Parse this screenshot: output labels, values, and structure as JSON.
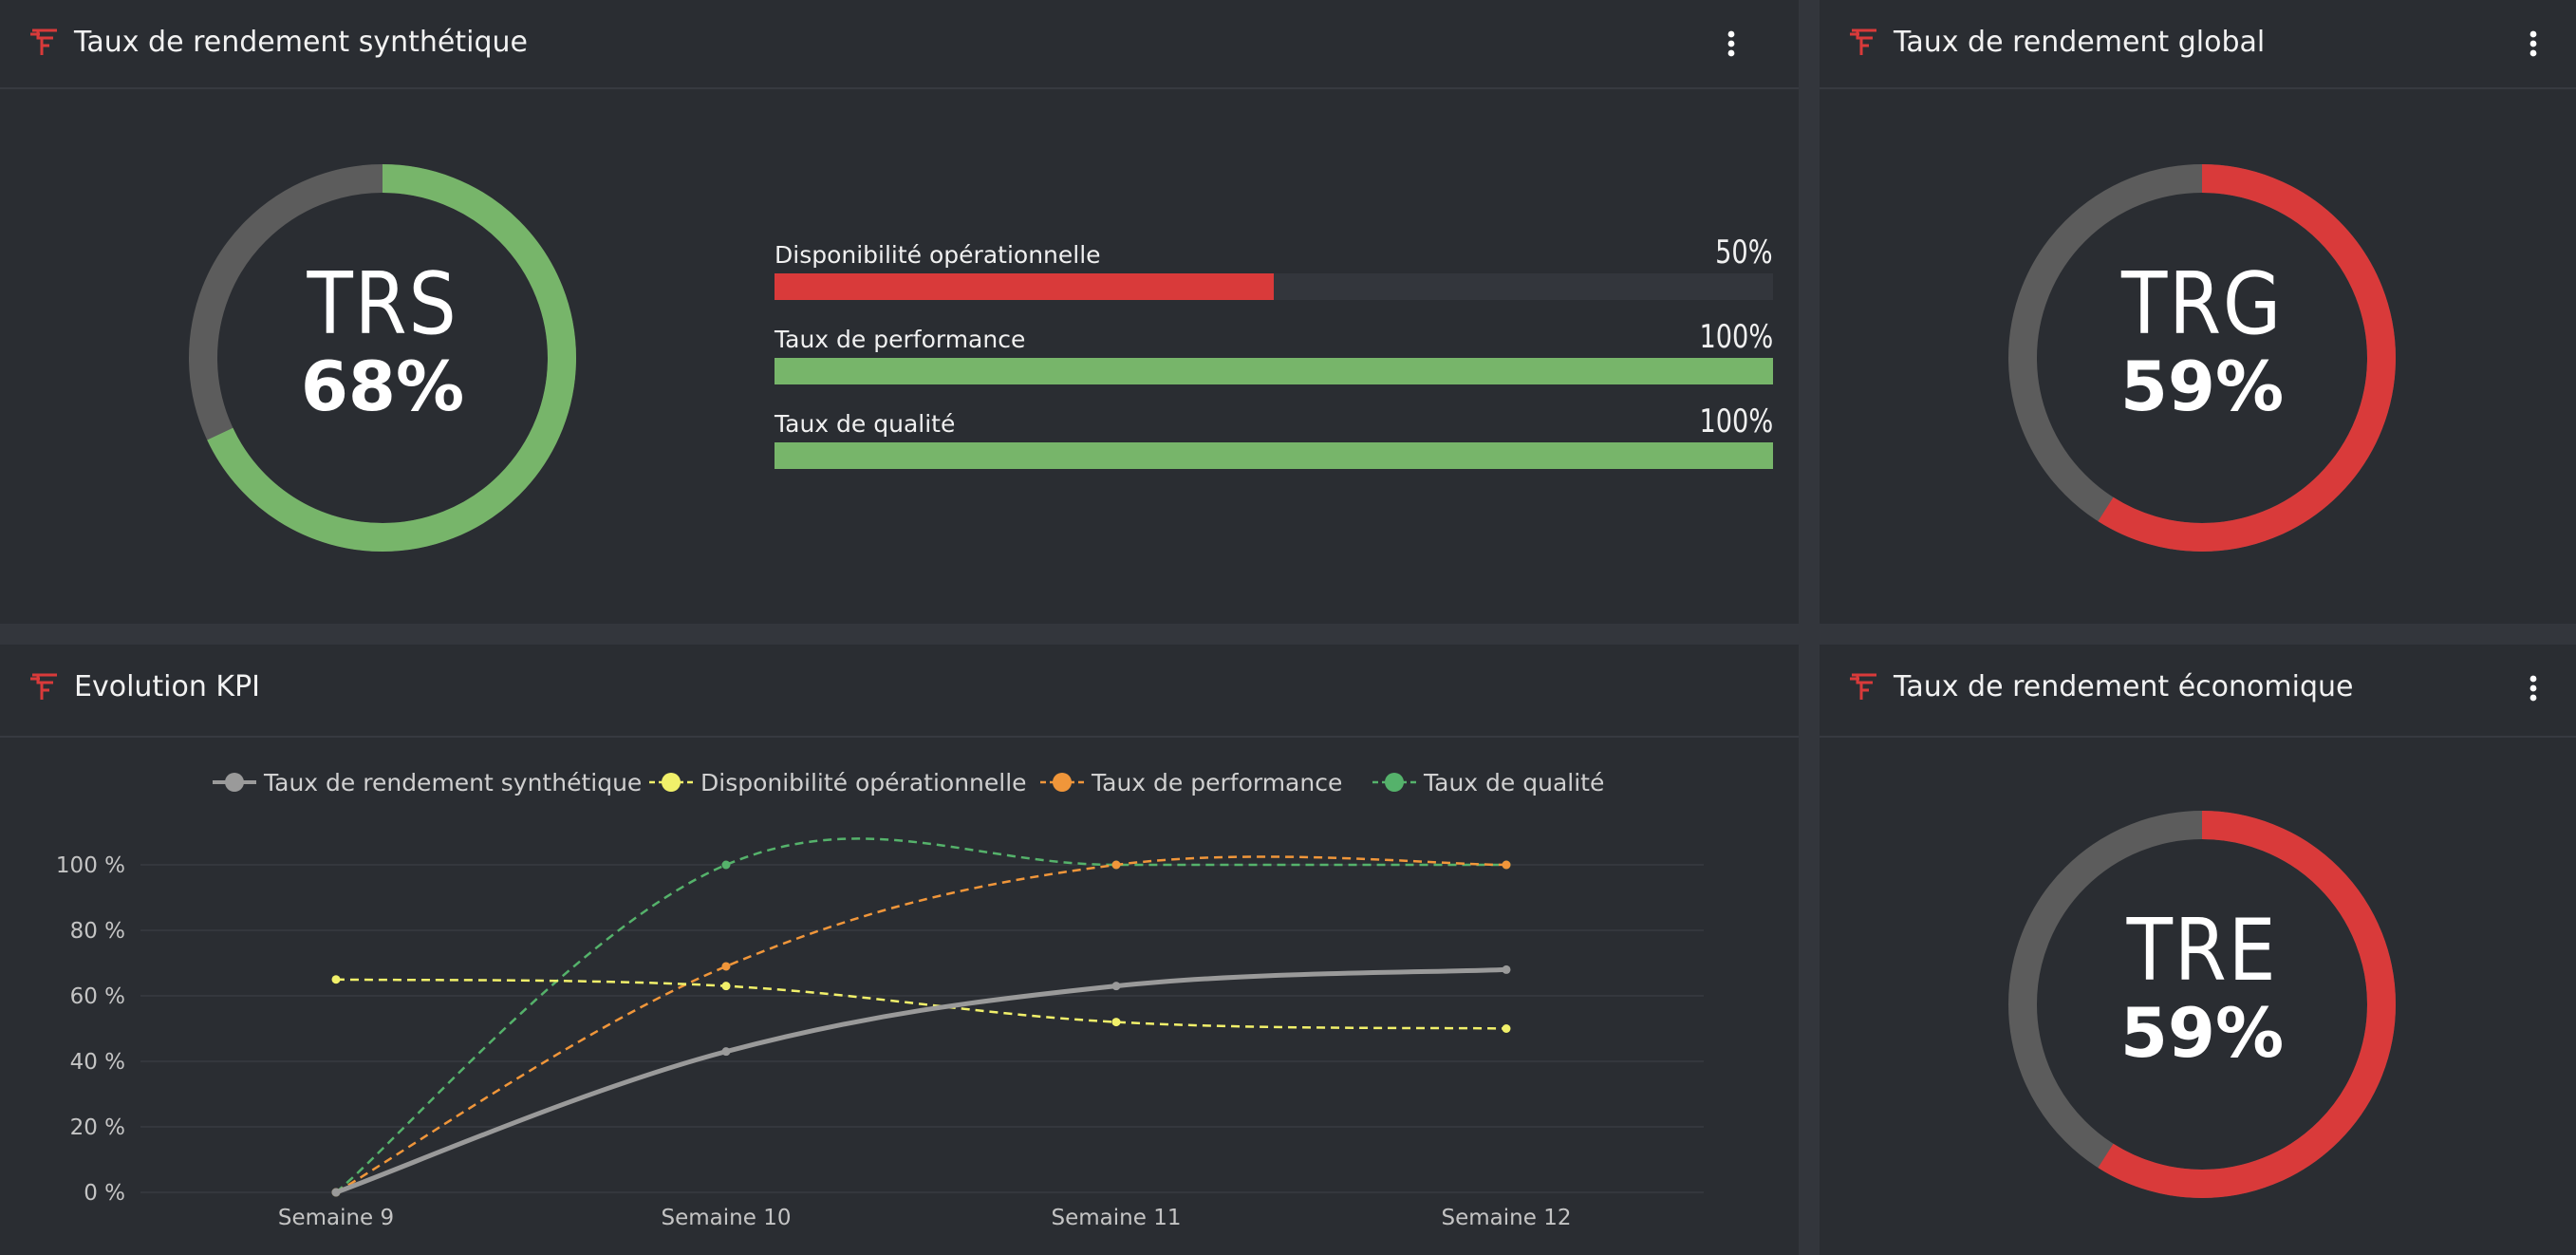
{
  "trs_panel": {
    "title": "Taux de rendement synthétique",
    "gauge": {
      "label": "TRS",
      "value_text": "68%",
      "value": 0.68,
      "color": "#77b56a",
      "track_color": "#5c5c5c"
    },
    "bars": [
      {
        "label": "Disponibilité opérationnelle",
        "value_text": "50%",
        "value": 0.5,
        "color": "#d93a3a"
      },
      {
        "label": "Taux de performance",
        "value_text": "100%",
        "value": 1.0,
        "color": "#77b56a"
      },
      {
        "label": "Taux de qualité",
        "value_text": "100%",
        "value": 1.0,
        "color": "#77b56a"
      }
    ],
    "menu_icon": "more-vertical-icon"
  },
  "trg_panel": {
    "title": "Taux de rendement global",
    "gauge": {
      "label": "TRG",
      "value_text": "59%",
      "value": 0.59,
      "color": "#d93a3a",
      "track_color": "#5c5c5c"
    },
    "menu_icon": "more-vertical-icon"
  },
  "tre_panel": {
    "title": "Taux de rendement économique",
    "gauge": {
      "label": "TRE",
      "value_text": "59%",
      "value": 0.59,
      "color": "#d93a3a",
      "track_color": "#5c5c5c"
    },
    "menu_icon": "more-vertical-icon"
  },
  "kpi_panel": {
    "title": "Evolution KPI"
  },
  "colors": {
    "logo": "#d93a3a",
    "panel_bg": "#2a2d32",
    "page_bg": "#33363c"
  },
  "chart_data": {
    "type": "line",
    "categories": [
      "Semaine 9",
      "Semaine 10",
      "Semaine 11",
      "Semaine 12"
    ],
    "series": [
      {
        "name": "Taux de rendement synthétique",
        "values": [
          0,
          43,
          63,
          68
        ],
        "color": "#9a9a9a",
        "style": "solid"
      },
      {
        "name": "Disponibilité opérationnelle",
        "values": [
          65,
          63,
          52,
          50
        ],
        "color": "#f1f06a",
        "style": "dashed"
      },
      {
        "name": "Taux de performance",
        "values": [
          0,
          69,
          100,
          100
        ],
        "color": "#f0963a",
        "style": "dashed"
      },
      {
        "name": "Taux de qualité",
        "values": [
          0,
          100,
          100,
          100
        ],
        "color": "#55b26b",
        "style": "dashed"
      }
    ],
    "y_ticks": [
      "0 %",
      "20 %",
      "40 %",
      "60 %",
      "80 %",
      "100 %"
    ],
    "ylim": [
      0,
      100
    ],
    "grid": true,
    "legend_position": "top"
  }
}
